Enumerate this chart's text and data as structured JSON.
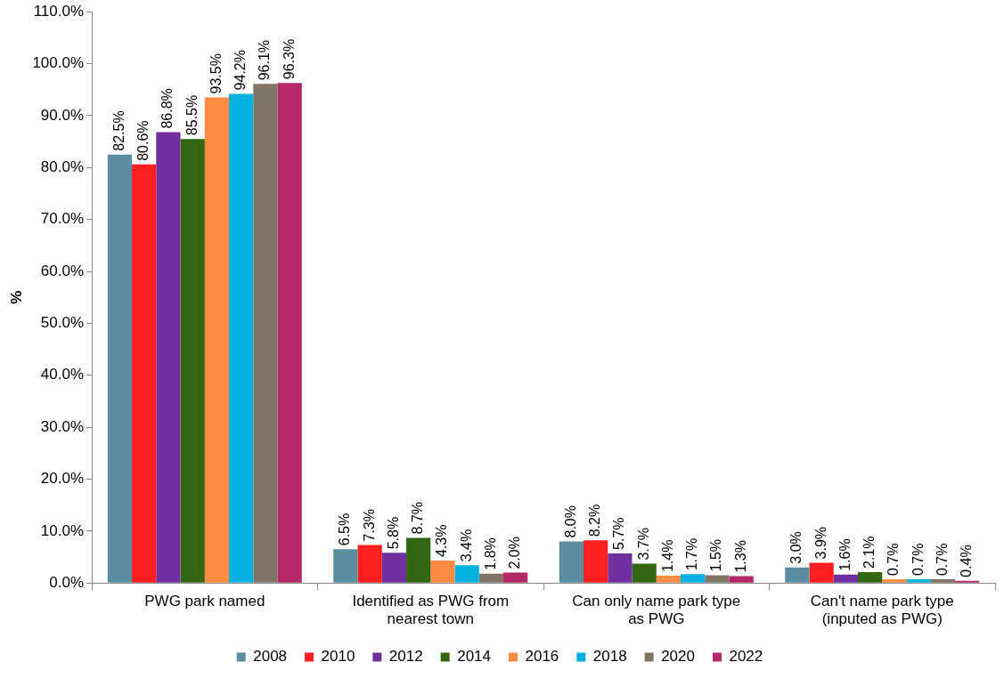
{
  "chart_data": {
    "type": "bar",
    "ylabel": "%",
    "categories": [
      "PWG park named",
      "Identified as PWG from nearest town",
      "Can only name park type as PWG",
      "Can't name park type (inputed as PWG)"
    ],
    "series": [
      {
        "name": "2008",
        "color": "#5b8ca1",
        "values": [
          82.5,
          6.5,
          8.0,
          3.0
        ],
        "value_labels": [
          "82.5%",
          "6.5%",
          "8.0%",
          "3.0%"
        ]
      },
      {
        "name": "2010",
        "color": "#ff1f1f",
        "values": [
          80.6,
          7.3,
          8.2,
          3.9
        ],
        "value_labels": [
          "80.6%",
          "7.3%",
          "8.2%",
          "3.9%"
        ]
      },
      {
        "name": "2012",
        "color": "#7030a0",
        "values": [
          86.8,
          5.8,
          5.7,
          1.6
        ],
        "value_labels": [
          "86.8%",
          "5.8%",
          "5.7%",
          "1.6%"
        ]
      },
      {
        "name": "2014",
        "color": "#336611",
        "values": [
          85.5,
          8.7,
          3.7,
          2.1
        ],
        "value_labels": [
          "85.5%",
          "8.7%",
          "3.7%",
          "2.1%"
        ]
      },
      {
        "name": "2016",
        "color": "#ff8c42",
        "values": [
          93.5,
          4.3,
          1.4,
          0.7
        ],
        "value_labels": [
          "93.5%",
          "4.3%",
          "1.4%",
          "0.7%"
        ]
      },
      {
        "name": "2018",
        "color": "#00b0e0",
        "values": [
          94.2,
          3.4,
          1.7,
          0.7
        ],
        "value_labels": [
          "94.2%",
          "3.4%",
          "1.7%",
          "0.7%"
        ]
      },
      {
        "name": "2020",
        "color": "#7f7466",
        "values": [
          96.1,
          1.8,
          1.5,
          0.7
        ],
        "value_labels": [
          "96.1%",
          "1.8%",
          "1.5%",
          "0.7%"
        ]
      },
      {
        "name": "2022",
        "color": "#b5296b",
        "values": [
          96.3,
          2.0,
          1.3,
          0.4
        ],
        "value_labels": [
          "96.3%",
          "2.0%",
          "1.3%",
          "0.4%"
        ]
      }
    ],
    "ylim": [
      0,
      110
    ],
    "yticks": [
      {
        "value": 0,
        "label": "0.0%"
      },
      {
        "value": 10,
        "label": "10.0%"
      },
      {
        "value": 20,
        "label": "20.0%"
      },
      {
        "value": 30,
        "label": "30.0%"
      },
      {
        "value": 40,
        "label": "40.0%"
      },
      {
        "value": 50,
        "label": "50.0%"
      },
      {
        "value": 60,
        "label": "60.0%"
      },
      {
        "value": 70,
        "label": "70.0%"
      },
      {
        "value": 80,
        "label": "80.0%"
      },
      {
        "value": 90,
        "label": "90.0%"
      },
      {
        "value": 100,
        "label": "100.0%"
      },
      {
        "value": 110,
        "label": "110.0%"
      }
    ],
    "grid": false,
    "legend": "bottom"
  }
}
